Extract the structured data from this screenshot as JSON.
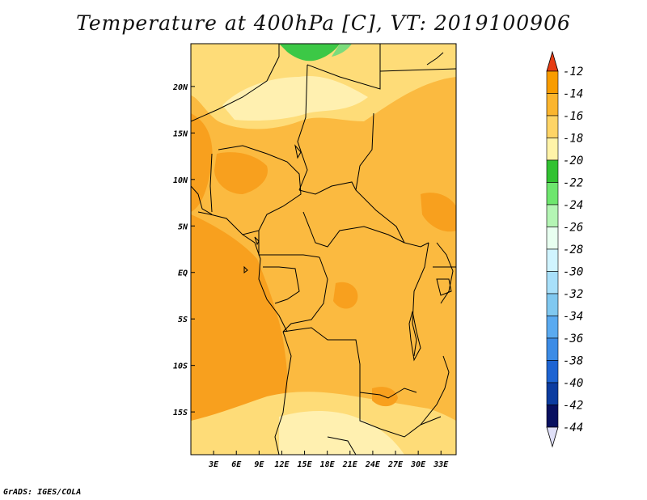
{
  "title": "Temperature at 400hPa [C], VT: 2019100906",
  "credit": "GrADS: IGES/COLA",
  "map": {
    "lat_ticks": [
      "20N",
      "15N",
      "10N",
      "5N",
      "EQ",
      "5S",
      "10S",
      "15S"
    ],
    "lat_values": [
      20,
      15,
      10,
      5,
      0,
      -5,
      -10,
      -15
    ],
    "lon_ticks": [
      "3E",
      "6E",
      "9E",
      "12E",
      "15E",
      "18E",
      "21E",
      "24E",
      "27E",
      "30E",
      "33E"
    ],
    "lon_values": [
      3,
      6,
      9,
      12,
      15,
      18,
      21,
      24,
      27,
      30,
      33
    ],
    "lon_range": [
      0,
      35
    ],
    "lat_range": [
      -19.6,
      24.6
    ],
    "colors": {
      "cold_band": "#fff0b0",
      "band_mid": "#fedc78",
      "band_warm": "#fbba40",
      "band_warmer": "#f8a01e",
      "green_patch": "#3cc846",
      "green_light": "#7bdc7b"
    }
  },
  "colorbar": {
    "labels": [
      "-12",
      "-14",
      "-16",
      "-18",
      "-20",
      "-22",
      "-24",
      "-26",
      "-28",
      "-30",
      "-32",
      "-34",
      "-36",
      "-38",
      "-40",
      "-42",
      "-44"
    ],
    "colors": [
      "#f06400",
      "#f89c00",
      "#fbb52e",
      "#fed466",
      "#fff3a8",
      "#32c232",
      "#6ee66e",
      "#b4f5b4",
      "#e8fff0",
      "#d0f4ff",
      "#a8e0fa",
      "#80c8f0",
      "#5aaaf0",
      "#3c8ce6",
      "#1e64d2",
      "#0c3ca0",
      "#081060"
    ],
    "top_arrow_color": "#e63c14",
    "bottom_arrow_color": "#e0e0f8"
  }
}
